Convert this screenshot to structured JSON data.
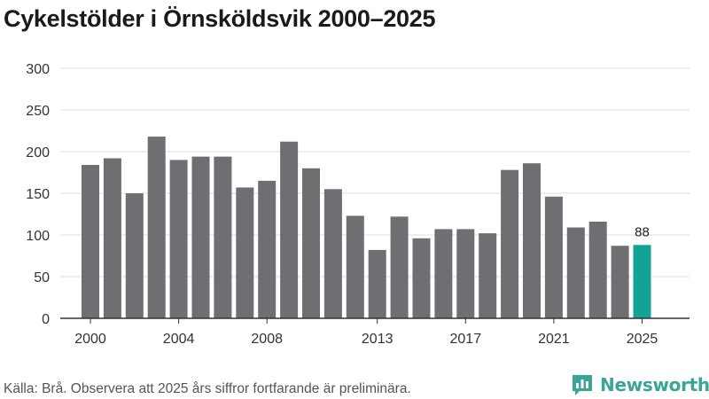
{
  "title": "Cykelstölder i Örnsköldsvik 2000–2025",
  "source": "Källa: Brå. Observera att 2025 års siffror fortfarande är preliminära.",
  "brand": {
    "name": "Newsworthy",
    "icon": "bar-chart-logo-icon",
    "color": "#3aa597"
  },
  "colors": {
    "bar": "#6f6e73",
    "highlight": "#12a394",
    "grid": "#dddddd",
    "axis": "#333333",
    "text": "#333333"
  },
  "chart_data": {
    "type": "bar",
    "title": "Cykelstölder i Örnsköldsvik 2000–2025",
    "xlabel": "",
    "ylabel": "",
    "ylim": [
      0,
      300
    ],
    "yticks": [
      0,
      50,
      100,
      150,
      200,
      250,
      300
    ],
    "xtick_labels": [
      "2000",
      "2004",
      "2008",
      "2013",
      "2017",
      "2021",
      "2025"
    ],
    "grid": true,
    "categories": [
      "2000",
      "2001",
      "2002",
      "2003",
      "2004",
      "2005",
      "2006",
      "2007",
      "2008",
      "2009",
      "2010",
      "2011",
      "2012",
      "2013",
      "2014",
      "2015",
      "2016",
      "2017",
      "2018",
      "2019",
      "2020",
      "2021",
      "2022",
      "2023",
      "2024",
      "2025"
    ],
    "values": [
      184,
      192,
      150,
      218,
      190,
      194,
      194,
      157,
      165,
      212,
      180,
      155,
      123,
      82,
      122,
      96,
      107,
      107,
      102,
      178,
      186,
      146,
      109,
      116,
      87,
      88
    ],
    "highlight": {
      "category": "2025",
      "label": "88"
    }
  }
}
